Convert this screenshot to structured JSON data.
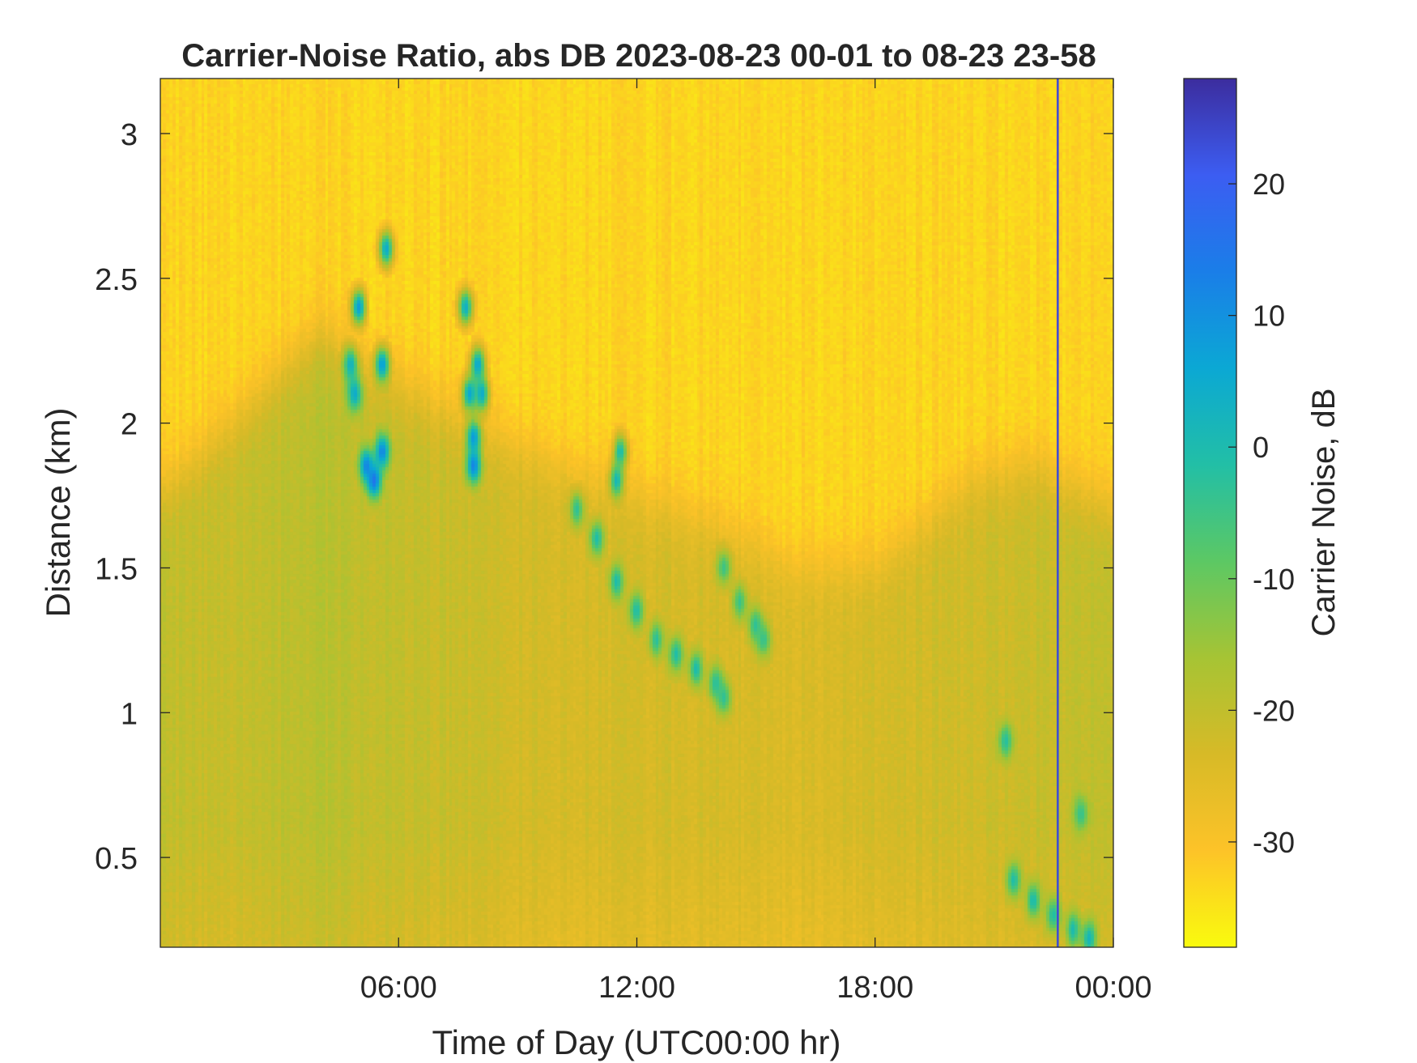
{
  "chart_data": {
    "type": "heatmap",
    "title": "Carrier-Noise Ratio, abs DB 2023-08-23 00-01 to 08-23 23-58",
    "xlabel": "Time of Day (UTC00:00 hr)",
    "ylabel": "Distance (km)",
    "colorbar_label": "Carrier Noise, dB",
    "xlim_hours": [
      0,
      24
    ],
    "ylim_km": [
      0.19,
      3.19
    ],
    "clim_db": [
      -38,
      28
    ],
    "x_ticks": [
      {
        "hours": 6,
        "label": "06:00"
      },
      {
        "hours": 12,
        "label": "12:00"
      },
      {
        "hours": 18,
        "label": "18:00"
      },
      {
        "hours": 24,
        "label": "00:00"
      }
    ],
    "y_ticks": [
      {
        "km": 0.5,
        "label": "0.5"
      },
      {
        "km": 1,
        "label": "1"
      },
      {
        "km": 1.5,
        "label": "1.5"
      },
      {
        "km": 2,
        "label": "2"
      },
      {
        "km": 2.5,
        "label": "2.5"
      },
      {
        "km": 3,
        "label": "3"
      }
    ],
    "colorbar_ticks": [
      {
        "db": 20,
        "label": "20"
      },
      {
        "db": 10,
        "label": "10"
      },
      {
        "db": 0,
        "label": "0"
      },
      {
        "db": -10,
        "label": "-10"
      },
      {
        "db": -20,
        "label": "-20"
      },
      {
        "db": -30,
        "label": "-30"
      }
    ],
    "colormap": [
      "#f9fb0e",
      "#fdc328",
      "#d7ba27",
      "#a6c434",
      "#5cc864",
      "#22bfa6",
      "#0ba8d4",
      "#1a7ee8",
      "#3c5df2",
      "#3c2d9e"
    ],
    "background_levels": [
      {
        "time_h": 0,
        "boundary_km": 1.75,
        "low_db": -20
      },
      {
        "time_h": 1.5,
        "boundary_km": 1.95,
        "low_db": -21
      },
      {
        "time_h": 4,
        "boundary_km": 2.3,
        "low_db": -19
      },
      {
        "time_h": 7,
        "boundary_km": 2.05,
        "low_db": -21
      },
      {
        "time_h": 10,
        "boundary_km": 1.85,
        "low_db": -23
      },
      {
        "time_h": 14,
        "boundary_km": 1.65,
        "low_db": -23
      },
      {
        "time_h": 16,
        "boundary_km": 1.5,
        "low_db": -24
      },
      {
        "time_h": 18,
        "boundary_km": 1.5,
        "low_db": -23
      },
      {
        "time_h": 20.5,
        "boundary_km": 1.8,
        "low_db": -22
      },
      {
        "time_h": 22,
        "boundary_km": 1.85,
        "low_db": -21
      },
      {
        "time_h": 24,
        "boundary_km": 1.7,
        "low_db": -20
      }
    ],
    "features": [
      {
        "name": "cloud-05h",
        "points": [
          [
            4.8,
            2.2,
            3
          ],
          [
            4.9,
            2.1,
            5
          ],
          [
            5.0,
            2.4,
            8
          ],
          [
            5.2,
            1.85,
            12
          ],
          [
            5.4,
            1.8,
            15
          ],
          [
            5.6,
            1.9,
            12
          ],
          [
            5.6,
            2.2,
            8
          ],
          [
            5.7,
            2.6,
            5
          ]
        ]
      },
      {
        "name": "cloud-08h",
        "points": [
          [
            7.7,
            2.4,
            4
          ],
          [
            7.8,
            2.1,
            6
          ],
          [
            7.9,
            1.95,
            8
          ],
          [
            7.9,
            1.85,
            12
          ],
          [
            8.0,
            2.2,
            6
          ],
          [
            8.1,
            2.1,
            5
          ]
        ]
      },
      {
        "name": "cloud-12h",
        "points": [
          [
            11.5,
            1.8,
            2
          ],
          [
            11.6,
            1.9,
            0
          ]
        ]
      },
      {
        "name": "layer-descending",
        "points": [
          [
            10.5,
            1.7,
            -3
          ],
          [
            11.0,
            1.6,
            -1
          ],
          [
            11.5,
            1.45,
            0
          ],
          [
            12.0,
            1.35,
            -1
          ],
          [
            12.5,
            1.25,
            -2
          ],
          [
            13.0,
            1.2,
            -1
          ],
          [
            13.5,
            1.15,
            0
          ],
          [
            14.0,
            1.1,
            -2
          ],
          [
            14.2,
            1.05,
            -3
          ]
        ]
      },
      {
        "name": "layer-15h",
        "points": [
          [
            14.2,
            1.5,
            -5
          ],
          [
            14.6,
            1.38,
            -4
          ],
          [
            15.0,
            1.3,
            -3
          ],
          [
            15.2,
            1.25,
            -4
          ]
        ]
      },
      {
        "name": "low-cloud-23h",
        "points": [
          [
            21.3,
            0.9,
            -2
          ],
          [
            21.5,
            0.42,
            -1
          ],
          [
            22.0,
            0.35,
            0
          ],
          [
            22.5,
            0.3,
            -1
          ],
          [
            23.0,
            0.25,
            0
          ],
          [
            23.4,
            0.22,
            2
          ],
          [
            23.2,
            0.65,
            -4
          ]
        ]
      }
    ],
    "vertical_marker_hours": 22.6
  }
}
